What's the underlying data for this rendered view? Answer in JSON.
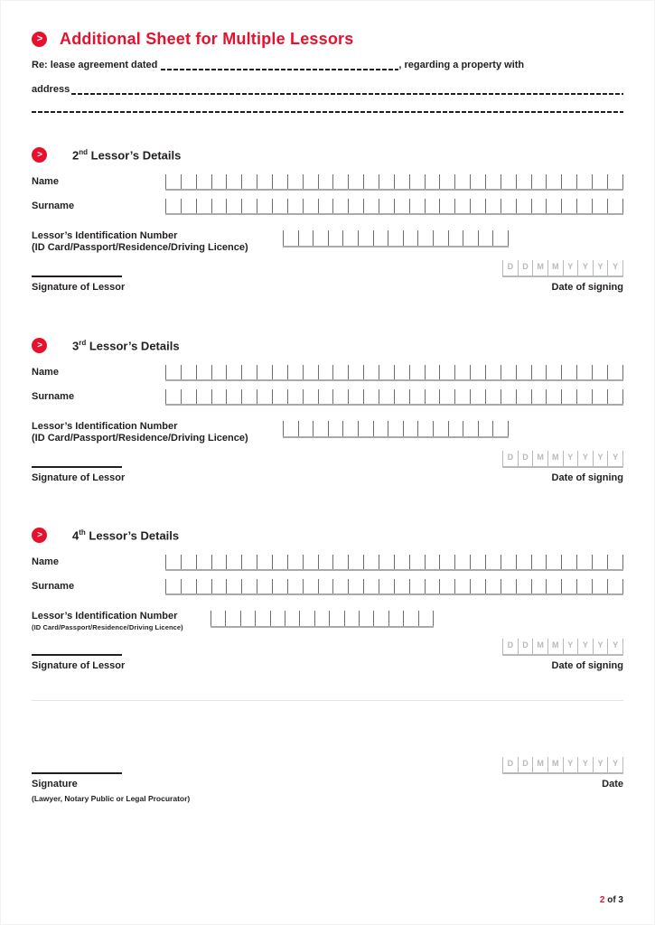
{
  "header": {
    "title": "Additional Sheet for Multiple Lessors",
    "intro_line1_prefix": "Re: lease agreement dated",
    "intro_line1_suffix": ", regarding a property with",
    "intro_line2_prefix": "address"
  },
  "date_box_letters": [
    "D",
    "D",
    "M",
    "M",
    "Y",
    "Y",
    "Y",
    "Y"
  ],
  "sections": [
    {
      "ordinal": "2",
      "ordinal_suffix": "nd",
      "title_rest": " Lessor’s Details",
      "name_label": "Name",
      "surname_label": "Surname",
      "id_label": "Lessor’s Identification Number",
      "id_sublabel": "(ID Card/Passport/Residence/Driving Licence)",
      "signature_label": "Signature of Lessor",
      "date_label": "Date of signing",
      "name_cells": 30,
      "surname_cells": 30,
      "id_cells": 15
    },
    {
      "ordinal": "3",
      "ordinal_suffix": "rd",
      "title_rest": " Lessor’s Details",
      "name_label": "Name",
      "surname_label": "Surname",
      "id_label": "Lessor’s Identification Number",
      "id_sublabel": "(ID Card/Passport/Residence/Driving Licence)",
      "signature_label": "Signature of Lessor",
      "date_label": "Date of signing",
      "name_cells": 30,
      "surname_cells": 30,
      "id_cells": 15
    },
    {
      "ordinal": "4",
      "ordinal_suffix": "th",
      "title_rest": " Lessor’s Details",
      "name_label": "Name",
      "surname_label": "Surname",
      "id_label": "Lessor’s Identification Number",
      "id_sublabel": "(ID Card/Passport/Residence/Driving Licence)",
      "signature_label": "Signature of Lessor",
      "date_label": "Date of signing",
      "name_cells": 30,
      "surname_cells": 30,
      "id_cells": 15
    }
  ],
  "footer": {
    "signature_label": "Signature",
    "signature_sublabel": "(Lawyer, Notary Public or Legal Procurator)",
    "date_label": "Date",
    "page_current": "2",
    "page_total": "of 3"
  },
  "colors": {
    "accent_red": "#e8112d",
    "text": "#231f20",
    "comb_divider": "#6d6e71",
    "comb_baseline": "#a7a9ac",
    "date_letters": "#b7b9bb",
    "section_divider": "#e3e3e3"
  }
}
